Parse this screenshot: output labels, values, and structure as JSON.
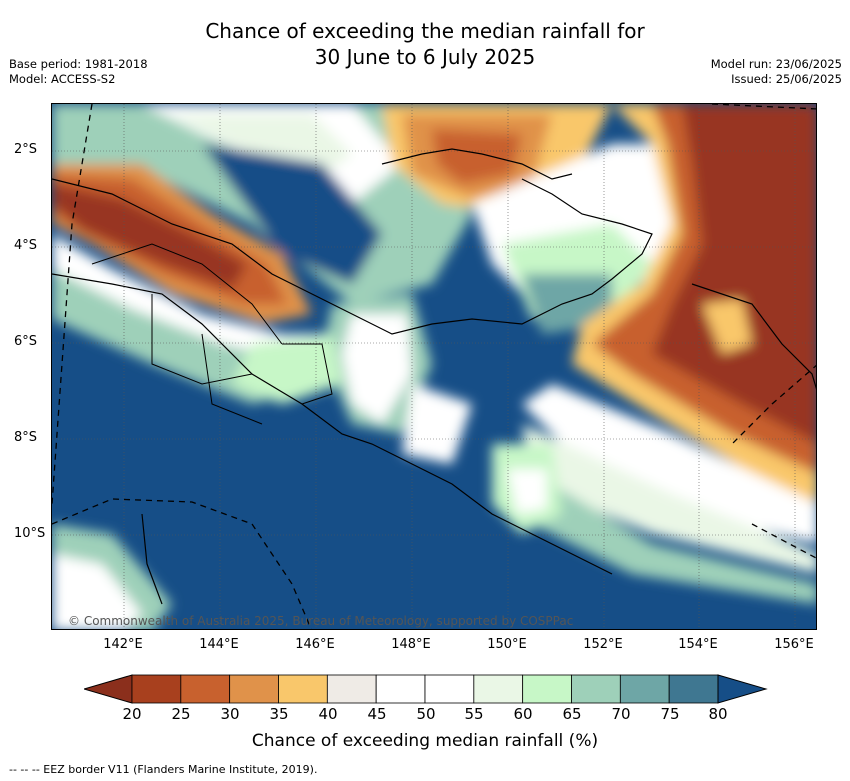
{
  "title": {
    "line1": "Chance of exceeding the median rainfall for",
    "line2": "30 June to 6 July 2025"
  },
  "meta_left": {
    "base_period": "Base period: 1981-2018",
    "model": "Model: ACCESS-S2"
  },
  "meta_right": {
    "model_run": "Model run: 23/06/2025",
    "issued": "Issued: 25/06/2025"
  },
  "map": {
    "longitude_ticks": [
      "142°E",
      "144°E",
      "146°E",
      "148°E",
      "150°E",
      "152°E",
      "154°E",
      "156°E"
    ],
    "latitude_ticks": [
      "2°S",
      "4°S",
      "6°S",
      "8°S",
      "10°S"
    ],
    "copyright": "© Commonwealth of Australia 2025, Bureau of Meteorology, supported by COSPPac"
  },
  "colorbar": {
    "labels": [
      "20",
      "25",
      "30",
      "35",
      "40",
      "45",
      "50",
      "55",
      "60",
      "65",
      "70",
      "75",
      "80"
    ],
    "colors": [
      "#a8401e",
      "#c8612e",
      "#e0924a",
      "#f9c76b",
      "#efebe6",
      "#ffffff",
      "#ffffff",
      "#eaf7e6",
      "#c7f7c7",
      "#9ed0b9",
      "#6ea6a6",
      "#3f7791"
    ],
    "under_color": "#8b2f1c",
    "over_color": "#164e87",
    "title": "Chance of exceeding median rainfall (%)"
  },
  "legend_note": "-- -- -- EEZ border V11 (Flanders Marine Institute, 2019).",
  "colors": {
    "very_dry": "#983420",
    "very_wet": "#174f88"
  }
}
